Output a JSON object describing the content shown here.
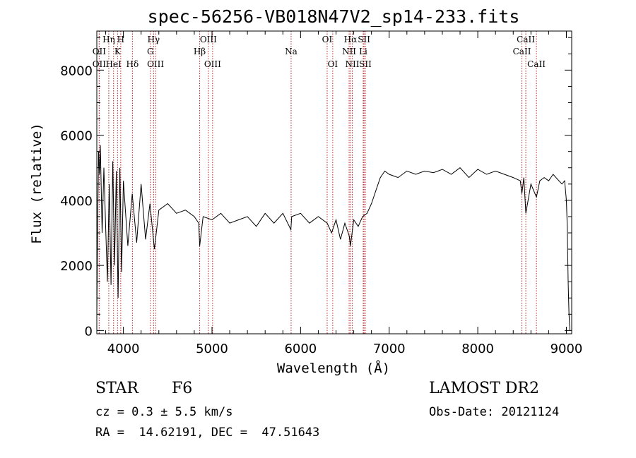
{
  "chart_data": {
    "type": "line",
    "title": "spec-56256-VB018N47V2_sp14-233.fits",
    "xlabel": "Wavelength (Å)",
    "ylabel": "Flux (relative)",
    "xlim": [
      3700,
      9060
    ],
    "ylim": [
      -100,
      9200
    ],
    "xticks": [
      4000,
      5000,
      6000,
      7000,
      8000,
      9000
    ],
    "yticks": [
      0,
      2000,
      4000,
      6000,
      8000
    ],
    "grid": false,
    "series": [
      {
        "x": [
          3700,
          3710,
          3720,
          3730,
          3740,
          3750,
          3760,
          3780,
          3800,
          3820,
          3840,
          3860,
          3880,
          3900,
          3920,
          3940,
          3960,
          3980,
          4000,
          4050,
          4100,
          4150,
          4200,
          4250,
          4300,
          4350,
          4400,
          4500,
          4600,
          4700,
          4800,
          4850,
          4861,
          4900,
          5000,
          5100,
          5200,
          5300,
          5400,
          5500,
          5600,
          5700,
          5800,
          5890,
          5900,
          6000,
          6100,
          6200,
          6300,
          6350,
          6400,
          6450,
          6500,
          6550,
          6563,
          6600,
          6650,
          6700,
          6750,
          6800,
          6850,
          6900,
          6950,
          7000,
          7100,
          7200,
          7300,
          7400,
          7500,
          7600,
          7700,
          7800,
          7900,
          8000,
          8100,
          8200,
          8300,
          8400,
          8480,
          8498,
          8520,
          8542,
          8600,
          8662,
          8700,
          8750,
          8800,
          8850,
          8900,
          8950,
          8980,
          9000,
          9010,
          9020,
          9030,
          9040
        ],
        "y": [
          400,
          3500,
          5500,
          4800,
          5700,
          4300,
          3000,
          5000,
          3200,
          1500,
          4500,
          1400,
          5200,
          2000,
          4900,
          1000,
          5000,
          1800,
          4600,
          2600,
          4200,
          2700,
          4500,
          2800,
          3900,
          2500,
          3700,
          3900,
          3600,
          3700,
          3500,
          3300,
          2600,
          3500,
          3400,
          3600,
          3300,
          3400,
          3500,
          3200,
          3600,
          3300,
          3600,
          3100,
          3500,
          3600,
          3300,
          3500,
          3300,
          3000,
          3400,
          2800,
          3300,
          2900,
          2600,
          3400,
          3200,
          3500,
          3600,
          3900,
          4300,
          4700,
          4900,
          4800,
          4700,
          4900,
          4800,
          4900,
          4850,
          4950,
          4800,
          5000,
          4700,
          4950,
          4800,
          4900,
          4800,
          4700,
          4600,
          4200,
          4700,
          3600,
          4500,
          4100,
          4600,
          4700,
          4600,
          4800,
          4650,
          4500,
          4600,
          4000,
          3200,
          1500,
          500,
          0
        ]
      }
    ],
    "lines": [
      {
        "name": "OII",
        "w": 3727,
        "row": 1
      },
      {
        "name": "OII",
        "w": 3727,
        "row": 2
      },
      {
        "name": "Hη",
        "w": 3835,
        "row": 0
      },
      {
        "name": "HeI",
        "w": 3889,
        "row": 2
      },
      {
        "name": "K",
        "w": 3934,
        "row": 1
      },
      {
        "name": "H",
        "w": 3970,
        "row": 0
      },
      {
        "name": "Hδ",
        "w": 4102,
        "row": 2
      },
      {
        "name": "Hγ",
        "w": 4341,
        "row": 0
      },
      {
        "name": "G",
        "w": 4305,
        "row": 1
      },
      {
        "name": "OIII",
        "w": 4363,
        "row": 2
      },
      {
        "name": "Hβ",
        "w": 4861,
        "row": 1
      },
      {
        "name": "OIII",
        "w": 4959,
        "row": 0
      },
      {
        "name": "OIII",
        "w": 5007,
        "row": 2
      },
      {
        "name": "Na",
        "w": 5893,
        "row": 1
      },
      {
        "name": "OI",
        "w": 6300,
        "row": 0
      },
      {
        "name": "OI",
        "w": 6363,
        "row": 2
      },
      {
        "name": "NII",
        "w": 6548,
        "row": 1
      },
      {
        "name": "Hα",
        "w": 6563,
        "row": 0
      },
      {
        "name": "NII",
        "w": 6583,
        "row": 2
      },
      {
        "name": "Li",
        "w": 6707,
        "row": 1
      },
      {
        "name": "SII",
        "w": 6716,
        "row": 0
      },
      {
        "name": "SII",
        "w": 6731,
        "row": 2
      },
      {
        "name": "CaII",
        "w": 8498,
        "row": 1
      },
      {
        "name": "CaII",
        "w": 8542,
        "row": 0
      },
      {
        "name": "CaII",
        "w": 8662,
        "row": 2
      }
    ]
  },
  "info": {
    "class_label": "STAR",
    "subclass": "F6",
    "redshift": "cz = 0.3 ± 5.5 km/s",
    "coords": "RA =  14.62191, DEC =  47.51643",
    "survey": "LAMOST DR2",
    "obs_date": "Obs-Date: 20121124"
  }
}
